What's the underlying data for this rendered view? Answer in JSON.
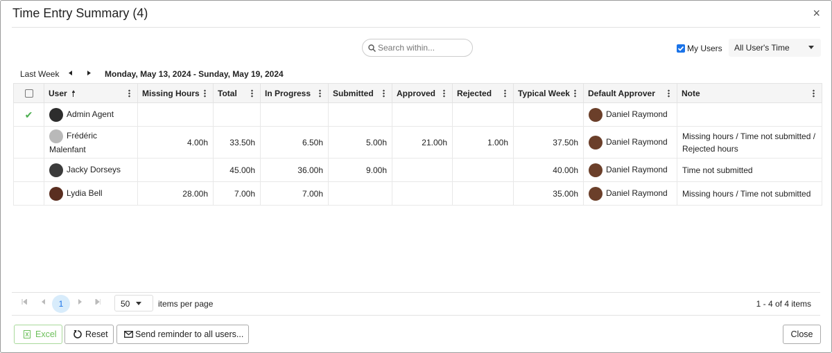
{
  "dialog": {
    "title": "Time Entry Summary (4)",
    "close": "×"
  },
  "toolbar": {
    "search_placeholder": "Search within...",
    "my_users": "My Users",
    "time_filter": "All User's Time"
  },
  "period": {
    "label": "Last Week",
    "range": "Monday, May 13, 2024 - Sunday, May 19, 2024"
  },
  "table": {
    "columns": [
      "User",
      "Missing Hours",
      "Total",
      "In Progress",
      "Submitted",
      "Approved",
      "Rejected",
      "Typical Week",
      "Default Approver",
      "Note"
    ],
    "rows": [
      {
        "status": "✔",
        "user": "Admin Agent",
        "values": [
          null,
          null,
          null,
          null,
          null,
          null,
          null
        ],
        "approver": "Daniel Raymond",
        "note": null
      },
      {
        "status": null,
        "user": "Frédéric Malenfant",
        "values": [
          "4.00h",
          "33.50h",
          "6.50h",
          "5.00h",
          "21.00h",
          "1.00h",
          "37.50h"
        ],
        "approver": "Daniel Raymond",
        "note": "Missing hours / Time not submitted / Rejected hours"
      },
      {
        "status": null,
        "user": "Jacky Dorseys",
        "values": [
          null,
          "45.00h",
          "36.00h",
          "9.00h",
          null,
          null,
          "40.00h"
        ],
        "approver": "Daniel Raymond",
        "note": "Time not submitted"
      },
      {
        "status": null,
        "user": "Lydia Bell",
        "values": [
          "28.00h",
          "7.00h",
          "7.00h",
          null,
          null,
          null,
          "35.00h"
        ],
        "approver": "Daniel Raymond",
        "note": "Missing hours / Time not submitted"
      }
    ]
  },
  "pager": {
    "current_page": "1",
    "page_size": "50",
    "page_size_label": "items per page",
    "summary": "1 - 4 of 4 items"
  },
  "footer": {
    "buttons": [
      "Excel",
      "Reset",
      "Send reminder to all users..."
    ],
    "close": "Close"
  }
}
